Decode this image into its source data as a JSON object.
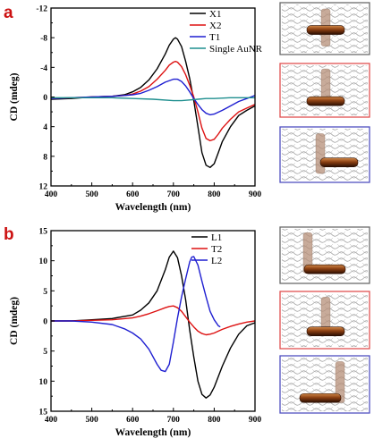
{
  "colors": {
    "panel_letter": "#cc1111",
    "box_borders": [
      "#6b6b6b",
      "#e05050",
      "#5050c0"
    ]
  },
  "panels": [
    {
      "letter": "a",
      "icons": [
        "schematic-cross",
        "schematic-t-shape",
        "schematic-offset-t"
      ],
      "chart_data": {
        "type": "line",
        "xlabel": "Wavelength (nm)",
        "ylabel": "CD (mdeg)",
        "xlim": [
          400,
          900
        ],
        "ylim": [
          -12,
          12
        ],
        "xticks": [
          "400",
          "500",
          "600",
          "700",
          "800",
          "900"
        ],
        "yticks": [
          "-12",
          "-8",
          "-4",
          "0",
          "4",
          "8",
          "12"
        ],
        "legend_position": "top-right",
        "series": [
          {
            "name": "X1",
            "color": "#000000",
            "x": [
              400,
              450,
              500,
              550,
              580,
              600,
              620,
              640,
              660,
              680,
              690,
              700,
              705,
              710,
              720,
              730,
              740,
              750,
              760,
              770,
              780,
              790,
              800,
              810,
              820,
              840,
              860,
              880,
              900
            ],
            "y": [
              -0.3,
              -0.2,
              0.0,
              0.1,
              0.3,
              0.7,
              1.3,
              2.3,
              3.8,
              5.8,
              7.0,
              7.8,
              8.0,
              7.8,
              6.8,
              4.8,
              2.5,
              -0.5,
              -4.0,
              -7.5,
              -9.2,
              -9.5,
              -9.0,
              -7.5,
              -6.0,
              -4.0,
              -2.5,
              -1.8,
              -1.2
            ]
          },
          {
            "name": "X2",
            "color": "#dd1111",
            "x": [
              400,
              450,
              500,
              550,
              580,
              600,
              620,
              640,
              660,
              680,
              690,
              700,
              705,
              710,
              720,
              730,
              740,
              750,
              760,
              770,
              780,
              790,
              800,
              810,
              820,
              840,
              860,
              880,
              900
            ],
            "y": [
              -0.2,
              -0.1,
              0.0,
              0.1,
              0.2,
              0.4,
              0.8,
              1.4,
              2.4,
              3.6,
              4.3,
              4.7,
              4.8,
              4.7,
              4.1,
              3.0,
              1.6,
              0.0,
              -2.0,
              -4.2,
              -5.6,
              -5.9,
              -5.7,
              -5.0,
              -4.2,
              -3.0,
              -2.0,
              -1.5,
              -1.0
            ]
          },
          {
            "name": "T1",
            "color": "#1f1fd1",
            "x": [
              400,
              450,
              500,
              550,
              580,
              600,
              620,
              640,
              660,
              680,
              700,
              710,
              720,
              730,
              740,
              750,
              760,
              770,
              780,
              790,
              800,
              820,
              840,
              860,
              880,
              900
            ],
            "y": [
              -0.2,
              -0.1,
              0.0,
              0.1,
              0.2,
              0.3,
              0.5,
              0.9,
              1.4,
              2.0,
              2.4,
              2.4,
              2.1,
              1.5,
              0.7,
              -0.2,
              -1.0,
              -1.7,
              -2.2,
              -2.4,
              -2.3,
              -1.8,
              -1.2,
              -0.6,
              -0.2,
              0.2
            ]
          },
          {
            "name": "Single AuNR",
            "color": "#1f8f8f",
            "x": [
              400,
              450,
              500,
              550,
              600,
              650,
              700,
              720,
              740,
              760,
              780,
              800,
              840,
              880,
              900
            ],
            "y": [
              -0.1,
              -0.1,
              -0.1,
              -0.1,
              -0.2,
              -0.3,
              -0.5,
              -0.5,
              -0.4,
              -0.3,
              -0.2,
              -0.2,
              -0.1,
              -0.1,
              -0.1
            ]
          }
        ]
      }
    },
    {
      "letter": "b",
      "icons": [
        "schematic-l-shape",
        "schematic-t-shape",
        "schematic-reversed-l"
      ],
      "chart_data": {
        "type": "line",
        "xlabel": "Wavelength (nm)",
        "ylabel": "CD (mdeg)",
        "xlim": [
          400,
          900
        ],
        "ylim": [
          -15,
          15
        ],
        "xticks": [
          "400",
          "500",
          "600",
          "700",
          "800",
          "900"
        ],
        "yticks": [
          "15",
          "10",
          "5",
          "0",
          "5",
          "10",
          "15"
        ],
        "legend_position": "top-right",
        "series": [
          {
            "name": "L1",
            "color": "#000000",
            "x": [
              400,
              450,
              500,
              550,
              600,
              620,
              640,
              660,
              680,
              690,
              700,
              710,
              720,
              730,
              740,
              750,
              760,
              770,
              780,
              790,
              800,
              820,
              840,
              860,
              880,
              900
            ],
            "y": [
              0.0,
              0.0,
              0.2,
              0.4,
              1.0,
              1.8,
              3.0,
              5.0,
              8.5,
              10.6,
              11.6,
              10.5,
              7.5,
              3.5,
              -1.5,
              -6.0,
              -10.0,
              -12.2,
              -12.8,
              -12.3,
              -11.0,
              -7.5,
              -4.5,
              -2.2,
              -0.8,
              -0.3
            ]
          },
          {
            "name": "T2",
            "color": "#dd1111",
            "x": [
              400,
              450,
              500,
              550,
              600,
              620,
              640,
              660,
              680,
              690,
              700,
              710,
              720,
              730,
              740,
              750,
              760,
              770,
              780,
              790,
              800,
              810,
              820,
              840,
              860,
              880,
              900
            ],
            "y": [
              0.0,
              0.0,
              0.1,
              0.2,
              0.5,
              0.8,
              1.2,
              1.7,
              2.2,
              2.4,
              2.5,
              2.2,
              1.6,
              0.7,
              -0.2,
              -1.0,
              -1.7,
              -2.1,
              -2.3,
              -2.2,
              -2.0,
              -1.7,
              -1.4,
              -0.9,
              -0.5,
              -0.2,
              0.0
            ]
          },
          {
            "name": "L2",
            "color": "#1f1fd1",
            "x": [
              400,
              450,
              500,
              550,
              580,
              600,
              620,
              640,
              660,
              670,
              680,
              690,
              700,
              710,
              720,
              730,
              740,
              745,
              750,
              760,
              770,
              780,
              790,
              800,
              810,
              815
            ],
            "y": [
              0.0,
              0.0,
              -0.2,
              -0.6,
              -1.3,
              -2.0,
              -3.0,
              -4.7,
              -7.2,
              -8.2,
              -8.4,
              -7.2,
              -3.5,
              0.5,
              4.0,
              7.0,
              9.8,
              10.6,
              10.7,
              9.3,
              6.6,
              4.0,
              1.6,
              0.2,
              -0.8,
              -1.0
            ]
          }
        ]
      }
    }
  ]
}
